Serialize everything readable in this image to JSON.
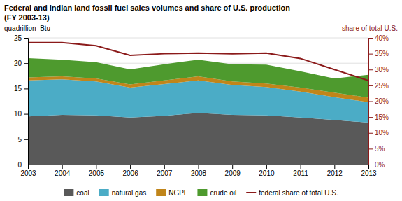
{
  "chart_data": {
    "type": "area",
    "title": "Federal and Indian land fossil fuel sales volumes and share of U.S. production",
    "subtitle": "(FY 2003-13)",
    "ylabel": "quadrillion  Btu",
    "y2label": "share of total U.S.",
    "x": [
      2003,
      2004,
      2005,
      2006,
      2007,
      2008,
      2009,
      2010,
      2011,
      2012,
      2013
    ],
    "xlim": [
      2003,
      2013
    ],
    "xticks": [
      2003,
      2004,
      2005,
      2006,
      2007,
      2008,
      2009,
      2010,
      2011,
      2012,
      2013
    ],
    "ylim": [
      0,
      25
    ],
    "yticks": [
      0,
      5,
      10,
      15,
      20,
      25
    ],
    "y2lim": [
      0,
      40
    ],
    "y2ticks": [
      {
        "value": 0,
        "label": "0%"
      },
      {
        "value": 5,
        "label": "5%"
      },
      {
        "value": 10,
        "label": "10%"
      },
      {
        "value": 15,
        "label": "15%"
      },
      {
        "value": 20,
        "label": "20%"
      },
      {
        "value": 25,
        "label": "25%"
      },
      {
        "value": 30,
        "label": "30%"
      },
      {
        "value": 35,
        "label": "35%"
      },
      {
        "value": 40,
        "label": "40%"
      }
    ],
    "stacked": true,
    "grid": true,
    "legend": "bottom",
    "series": [
      {
        "name": "coal",
        "color": "#595959",
        "values": [
          9.5,
          9.8,
          9.7,
          9.3,
          9.6,
          10.2,
          9.8,
          9.7,
          9.3,
          8.8,
          8.3
        ]
      },
      {
        "name": "natural gas",
        "color": "#4bacc6",
        "values": [
          7.1,
          7.0,
          6.7,
          5.9,
          6.3,
          6.4,
          5.9,
          5.6,
          5.1,
          4.5,
          4.0
        ]
      },
      {
        "name": "NGPL",
        "color": "#c0851a",
        "values": [
          0.6,
          0.6,
          0.6,
          0.6,
          0.7,
          0.8,
          0.7,
          0.7,
          0.8,
          0.9,
          0.9
        ]
      },
      {
        "name": "crude oil",
        "color": "#4e9a2e",
        "values": [
          3.8,
          3.3,
          3.2,
          3.0,
          3.2,
          3.3,
          3.4,
          3.7,
          3.2,
          2.8,
          4.5
        ]
      },
      {
        "name": "federal share of total U.S.",
        "color": "#8b1a1a",
        "type": "line",
        "axis": "y2",
        "values": [
          38.5,
          38.5,
          37.5,
          34.5,
          35.0,
          35.2,
          35.0,
          35.2,
          33.5,
          30.0,
          26.5
        ]
      }
    ]
  }
}
